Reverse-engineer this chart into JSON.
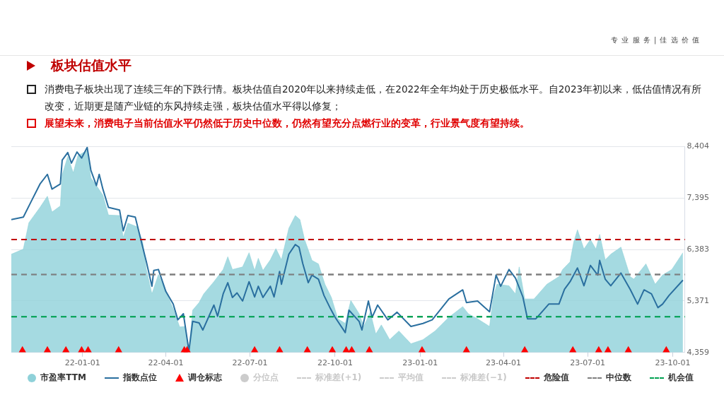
{
  "chart_data": {
    "type": "line",
    "title": "板块估值水平",
    "annotations": [
      "专 业 服 务 | 佳 选 价 值",
      "消费电子板块出现了连续三年的下跌行情。板块估值自2020年以来持续走低，在2022年全年均处于历史极低水平。自2023年初以来，低估值情况有所改变，近期更是随产业链的东风持续走强，板块估值水平得以修复；",
      "展望未来，消费电子当前估值水平仍然低于历史中位数，仍然有望充分点燃行业的变革，行业景气度有望持续。"
    ],
    "xlim": [
      "2021-10-16",
      "2023-10-14"
    ],
    "xticks": [
      {
        "value": "2022-01-01",
        "label": "22-01-01"
      },
      {
        "value": "2022-04-01",
        "label": "22-04-01"
      },
      {
        "value": "2022-07-01",
        "label": "22-07-01"
      },
      {
        "value": "2022-10-01",
        "label": "22-10-01"
      },
      {
        "value": "2023-01-01",
        "label": "23-01-01"
      },
      {
        "value": "2023-04-01",
        "label": "23-04-01"
      },
      {
        "value": "2023-07-01",
        "label": "23-07-01"
      },
      {
        "value": "2023-10-01",
        "label": "23-10-01"
      }
    ],
    "ylim": [
      4359,
      8404
    ],
    "yticks": [
      {
        "value": 4359,
        "label": "4,359"
      },
      {
        "value": 5371,
        "label": "5,371"
      },
      {
        "value": 6383,
        "label": "6,383"
      },
      {
        "value": 7395,
        "label": "7,395"
      },
      {
        "value": 8404,
        "label": "8,404"
      }
    ],
    "grid": "y",
    "legend": "bottom",
    "series": [
      {
        "name": "市盈率TTM",
        "type": "area",
        "color": "#8fd1d9",
        "marker": "none",
        "x": [
          "2021-10-16",
          "2021-10-29",
          "2021-11-04",
          "2021-11-16",
          "2021-11-24",
          "2021-11-29",
          "2021-12-08",
          "2021-12-10",
          "2021-12-16",
          "2021-12-22",
          "2021-12-27",
          "2022-01-06",
          "2022-01-10",
          "2022-01-16",
          "2022-01-23",
          "2022-01-29",
          "2022-02-10",
          "2022-02-14",
          "2022-02-19",
          "2022-03-01",
          "2022-03-07",
          "2022-03-11",
          "2022-03-17",
          "2022-03-24",
          "2022-04-09",
          "2022-04-16",
          "2022-04-22",
          "2022-04-26",
          "2022-04-30",
          "2022-05-07",
          "2022-05-12",
          "2022-05-23",
          "2022-06-02",
          "2022-06-07",
          "2022-06-12",
          "2022-06-23",
          "2022-06-30",
          "2022-07-06",
          "2022-07-10",
          "2022-07-15",
          "2022-07-23",
          "2022-07-29",
          "2022-08-04",
          "2022-08-12",
          "2022-08-19",
          "2022-08-24",
          "2022-08-29",
          "2022-09-06",
          "2022-09-13",
          "2022-09-20",
          "2022-09-27",
          "2022-10-04",
          "2022-10-12",
          "2022-10-18",
          "2022-10-27",
          "2022-11-01",
          "2022-11-08",
          "2022-11-14",
          "2022-11-20",
          "2022-11-29",
          "2022-12-09",
          "2022-12-22",
          "2023-01-04",
          "2023-01-17",
          "2023-02-01",
          "2023-02-16",
          "2023-02-22",
          "2023-03-04",
          "2023-03-17",
          "2023-03-21",
          "2023-03-25",
          "2023-04-07",
          "2023-04-14",
          "2023-04-18",
          "2023-04-24",
          "2023-05-04",
          "2023-05-18",
          "2023-05-31",
          "2023-06-04",
          "2023-06-12",
          "2023-06-16",
          "2023-06-20",
          "2023-06-27",
          "2023-07-04",
          "2023-07-10",
          "2023-07-14",
          "2023-07-20",
          "2023-07-26",
          "2023-08-06",
          "2023-08-16",
          "2023-08-20",
          "2023-09-02",
          "2023-09-12",
          "2023-09-20",
          "2023-09-30",
          "2023-10-12"
        ],
        "values": [
          6290,
          6390,
          6910,
          7210,
          7430,
          7120,
          7240,
          7850,
          8210,
          7890,
          8230,
          8330,
          7790,
          7640,
          7450,
          7060,
          7050,
          6620,
          6900,
          6830,
          6530,
          5990,
          5510,
          5890,
          5220,
          4860,
          4870,
          4390,
          5190,
          5340,
          5510,
          5750,
          5990,
          6240,
          5990,
          6040,
          6320,
          5970,
          6210,
          5970,
          6180,
          6400,
          6180,
          6800,
          7050,
          6970,
          6580,
          6170,
          6100,
          5700,
          5440,
          5020,
          4930,
          5380,
          5120,
          4870,
          5150,
          4720,
          4900,
          4610,
          4780,
          4530,
          4610,
          4780,
          5050,
          5260,
          5120,
          5020,
          4870,
          5450,
          5700,
          5670,
          5510,
          6040,
          5410,
          5410,
          5700,
          5850,
          5990,
          6140,
          6530,
          6770,
          6390,
          6580,
          6390,
          6680,
          6180,
          6290,
          6430,
          5850,
          5800,
          6100,
          5700,
          5880,
          5990,
          6320
        ]
      },
      {
        "name": "指数点位",
        "type": "line",
        "color": "#2a6f9f",
        "marker": "none",
        "line_style": "solid",
        "x": [
          "2021-10-16",
          "2021-10-29",
          "2021-11-06",
          "2021-11-16",
          "2021-11-24",
          "2021-11-29",
          "2021-12-08",
          "2021-12-10",
          "2021-12-16",
          "2021-12-20",
          "2021-12-26",
          "2021-12-31",
          "2022-01-06",
          "2022-01-10",
          "2022-01-16",
          "2022-01-19",
          "2022-01-23",
          "2022-01-29",
          "2022-02-10",
          "2022-02-14",
          "2022-02-19",
          "2022-02-27",
          "2022-03-05",
          "2022-03-11",
          "2022-03-17",
          "2022-03-19",
          "2022-03-24",
          "2022-04-01",
          "2022-04-09",
          "2022-04-14",
          "2022-04-20",
          "2022-04-26",
          "2022-04-30",
          "2022-05-07",
          "2022-05-11",
          "2022-05-23",
          "2022-05-27",
          "2022-06-02",
          "2022-06-07",
          "2022-06-12",
          "2022-06-17",
          "2022-06-23",
          "2022-06-30",
          "2022-07-06",
          "2022-07-10",
          "2022-07-15",
          "2022-07-23",
          "2022-07-27",
          "2022-08-02",
          "2022-08-04",
          "2022-08-12",
          "2022-08-19",
          "2022-08-23",
          "2022-08-27",
          "2022-09-02",
          "2022-09-06",
          "2022-09-13",
          "2022-09-19",
          "2022-09-26",
          "2022-10-01",
          "2022-10-12",
          "2022-10-16",
          "2022-10-27",
          "2022-10-30",
          "2022-11-06",
          "2022-11-10",
          "2022-11-16",
          "2022-11-27",
          "2022-12-07",
          "2022-12-22",
          "2023-01-04",
          "2023-01-14",
          "2023-02-01",
          "2023-02-16",
          "2023-02-20",
          "2023-03-04",
          "2023-03-17",
          "2023-03-24",
          "2023-03-29",
          "2023-04-07",
          "2023-04-14",
          "2023-04-22",
          "2023-04-27",
          "2023-05-06",
          "2023-05-20",
          "2023-05-31",
          "2023-06-06",
          "2023-06-12",
          "2023-06-20",
          "2023-06-27",
          "2023-07-04",
          "2023-07-12",
          "2023-07-14",
          "2023-07-20",
          "2023-07-26",
          "2023-08-06",
          "2023-08-16",
          "2023-08-24",
          "2023-08-31",
          "2023-09-08",
          "2023-09-15",
          "2023-09-20",
          "2023-09-27",
          "2023-10-12"
        ],
        "values": [
          6970,
          7020,
          7310,
          7670,
          7860,
          7570,
          7670,
          8140,
          8290,
          8080,
          8300,
          8180,
          8390,
          7940,
          7640,
          7860,
          7570,
          7210,
          7160,
          6750,
          7050,
          7020,
          6580,
          6140,
          5660,
          5970,
          5990,
          5560,
          5310,
          5000,
          5120,
          4390,
          4970,
          4940,
          4800,
          5290,
          5070,
          5510,
          5730,
          5440,
          5530,
          5370,
          5750,
          5450,
          5660,
          5440,
          5660,
          5450,
          5950,
          5700,
          6290,
          6480,
          6430,
          6110,
          5730,
          5880,
          5800,
          5480,
          5220,
          5050,
          4750,
          5190,
          4970,
          4800,
          5370,
          5050,
          5290,
          5000,
          5150,
          4870,
          4930,
          5000,
          5410,
          5590,
          5340,
          5370,
          5160,
          5880,
          5660,
          5990,
          5820,
          5450,
          5020,
          5020,
          5310,
          5310,
          5600,
          5750,
          6020,
          5670,
          6070,
          5880,
          6170,
          5800,
          5670,
          5920,
          5600,
          5310,
          5590,
          5510,
          5240,
          5310,
          5480,
          5780
        ]
      },
      {
        "name": "调仓标志",
        "type": "scatter",
        "color": "#ff0000",
        "marker": "triangle",
        "x": [
          "2021-10-28",
          "2021-11-24",
          "2021-12-14",
          "2021-12-31",
          "2022-01-07",
          "2022-02-09",
          "2022-04-21",
          "2022-04-24",
          "2022-07-06",
          "2022-08-02",
          "2022-09-01",
          "2022-09-28",
          "2022-10-13",
          "2022-10-19",
          "2022-11-07",
          "2023-01-03",
          "2023-02-20",
          "2023-04-24",
          "2023-06-15",
          "2023-07-13",
          "2023-07-23",
          "2023-08-14",
          "2023-09-24"
        ],
        "values": [
          4400,
          4400,
          4400,
          4400,
          4400,
          4400,
          4400,
          4400,
          4400,
          4400,
          4400,
          4400,
          4400,
          4400,
          4400,
          4400,
          4400,
          4400,
          4400,
          4400,
          4400,
          4400,
          4400
        ]
      },
      {
        "name": "分位点",
        "type": "scatter",
        "color": "#cccccc",
        "marker": "circle"
      },
      {
        "name": "标准差(+1)",
        "type": "line",
        "color": "#cccccc",
        "marker": "none",
        "line_style": "dashed"
      },
      {
        "name": "平均值",
        "type": "line",
        "color": "#cccccc",
        "marker": "none",
        "line_style": "dashed"
      },
      {
        "name": "标准差(−1)",
        "type": "line",
        "color": "#cccccc",
        "marker": "none",
        "line_style": "dashed"
      }
    ],
    "ref_lines": [
      {
        "axis": "y",
        "value": 6580,
        "label": "危险值",
        "color": "#c00000",
        "line_style": "dashed"
      },
      {
        "axis": "y",
        "value": 5890,
        "label": "中位数",
        "color": "#7f7f7f",
        "line_style": "dashed"
      },
      {
        "axis": "y",
        "value": 5060,
        "label": "机会值",
        "color": "#00a050",
        "line_style": "dashed"
      }
    ]
  }
}
